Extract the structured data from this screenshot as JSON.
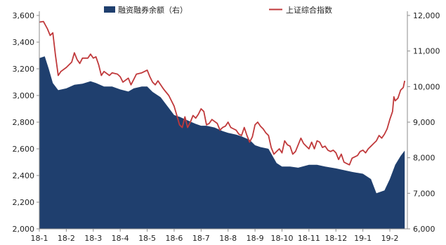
{
  "chart_data": {
    "type": "area+line",
    "title": "",
    "legend_position": "top",
    "grid": false,
    "x_ticks": [
      "18-1",
      "18-2",
      "18-3",
      "18-4",
      "18-5",
      "18-6",
      "18-7",
      "18-8",
      "18-9",
      "18-10",
      "18-11",
      "18-12",
      "19-1",
      "19-2"
    ],
    "x_range": [
      0,
      13.65
    ],
    "left_axis": {
      "min": 2000,
      "max": 3600,
      "step": 200,
      "ticks": [
        "2,000",
        "2,200",
        "2,400",
        "2,600",
        "2,800",
        "3,000",
        "3,200",
        "3,400",
        "3,600"
      ]
    },
    "right_axis": {
      "min": 6000,
      "max": 12000,
      "step": 1000,
      "ticks": [
        "6,000",
        "7,000",
        "8,000",
        "9,000",
        "10,000",
        "11,000",
        "12,000"
      ]
    },
    "series": [
      {
        "name": "融资融券余额（右）",
        "type": "area",
        "axis": "right",
        "color": "#1f3f6e",
        "points": [
          [
            0.0,
            10800
          ],
          [
            0.2,
            10850
          ],
          [
            0.35,
            10500
          ],
          [
            0.5,
            10100
          ],
          [
            0.7,
            9900
          ],
          [
            1.0,
            9950
          ],
          [
            1.3,
            10050
          ],
          [
            1.6,
            10080
          ],
          [
            1.9,
            10150
          ],
          [
            2.1,
            10100
          ],
          [
            2.4,
            10000
          ],
          [
            2.7,
            10000
          ],
          [
            3.0,
            9920
          ],
          [
            3.3,
            9860
          ],
          [
            3.5,
            9950
          ],
          [
            3.8,
            10000
          ],
          [
            4.0,
            10000
          ],
          [
            4.2,
            9850
          ],
          [
            4.5,
            9700
          ],
          [
            4.8,
            9400
          ],
          [
            5.0,
            9200
          ],
          [
            5.2,
            9150
          ],
          [
            5.5,
            9050
          ],
          [
            5.8,
            8950
          ],
          [
            6.0,
            8900
          ],
          [
            6.2,
            8900
          ],
          [
            6.5,
            8850
          ],
          [
            6.8,
            8750
          ],
          [
            7.0,
            8700
          ],
          [
            7.3,
            8650
          ],
          [
            7.5,
            8600
          ],
          [
            7.8,
            8500
          ],
          [
            8.0,
            8350
          ],
          [
            8.2,
            8300
          ],
          [
            8.5,
            8250
          ],
          [
            8.8,
            7850
          ],
          [
            9.0,
            7750
          ],
          [
            9.3,
            7750
          ],
          [
            9.6,
            7720
          ],
          [
            10.0,
            7800
          ],
          [
            10.3,
            7800
          ],
          [
            10.6,
            7750
          ],
          [
            11.0,
            7700
          ],
          [
            11.3,
            7650
          ],
          [
            11.6,
            7600
          ],
          [
            12.0,
            7550
          ],
          [
            12.3,
            7400
          ],
          [
            12.5,
            7000
          ],
          [
            12.8,
            7080
          ],
          [
            13.0,
            7400
          ],
          [
            13.2,
            7800
          ],
          [
            13.4,
            8050
          ],
          [
            13.55,
            8200
          ]
        ]
      },
      {
        "name": "上证综合指数",
        "type": "line",
        "axis": "left",
        "color": "#c0393b",
        "points": [
          [
            0.0,
            3550
          ],
          [
            0.15,
            3555
          ],
          [
            0.3,
            3500
          ],
          [
            0.4,
            3450
          ],
          [
            0.5,
            3470
          ],
          [
            0.6,
            3300
          ],
          [
            0.7,
            3150
          ],
          [
            0.8,
            3180
          ],
          [
            1.0,
            3210
          ],
          [
            1.2,
            3250
          ],
          [
            1.3,
            3320
          ],
          [
            1.4,
            3270
          ],
          [
            1.5,
            3240
          ],
          [
            1.6,
            3280
          ],
          [
            1.8,
            3280
          ],
          [
            1.9,
            3310
          ],
          [
            2.0,
            3280
          ],
          [
            2.1,
            3290
          ],
          [
            2.2,
            3230
          ],
          [
            2.3,
            3150
          ],
          [
            2.4,
            3180
          ],
          [
            2.6,
            3150
          ],
          [
            2.7,
            3170
          ],
          [
            2.9,
            3160
          ],
          [
            3.0,
            3140
          ],
          [
            3.1,
            3100
          ],
          [
            3.3,
            3130
          ],
          [
            3.4,
            3080
          ],
          [
            3.5,
            3120
          ],
          [
            3.6,
            3160
          ],
          [
            3.8,
            3170
          ],
          [
            4.0,
            3190
          ],
          [
            4.1,
            3140
          ],
          [
            4.2,
            3100
          ],
          [
            4.3,
            3080
          ],
          [
            4.4,
            3110
          ],
          [
            4.5,
            3080
          ],
          [
            4.6,
            3050
          ],
          [
            4.8,
            3000
          ],
          [
            5.0,
            2920
          ],
          [
            5.1,
            2850
          ],
          [
            5.2,
            2780
          ],
          [
            5.3,
            2760
          ],
          [
            5.4,
            2840
          ],
          [
            5.5,
            2760
          ],
          [
            5.6,
            2800
          ],
          [
            5.7,
            2850
          ],
          [
            5.8,
            2830
          ],
          [
            5.9,
            2860
          ],
          [
            6.0,
            2900
          ],
          [
            6.1,
            2880
          ],
          [
            6.2,
            2780
          ],
          [
            6.3,
            2790
          ],
          [
            6.4,
            2820
          ],
          [
            6.6,
            2790
          ],
          [
            6.7,
            2740
          ],
          [
            6.8,
            2760
          ],
          [
            6.9,
            2770
          ],
          [
            7.0,
            2800
          ],
          [
            7.1,
            2760
          ],
          [
            7.2,
            2750
          ],
          [
            7.3,
            2740
          ],
          [
            7.4,
            2710
          ],
          [
            7.5,
            2700
          ],
          [
            7.6,
            2760
          ],
          [
            7.7,
            2700
          ],
          [
            7.8,
            2650
          ],
          [
            7.9,
            2690
          ],
          [
            8.0,
            2780
          ],
          [
            8.1,
            2800
          ],
          [
            8.2,
            2770
          ],
          [
            8.3,
            2750
          ],
          [
            8.4,
            2720
          ],
          [
            8.5,
            2700
          ],
          [
            8.6,
            2610
          ],
          [
            8.7,
            2560
          ],
          [
            8.8,
            2580
          ],
          [
            8.9,
            2600
          ],
          [
            9.0,
            2570
          ],
          [
            9.1,
            2660
          ],
          [
            9.2,
            2630
          ],
          [
            9.3,
            2620
          ],
          [
            9.4,
            2560
          ],
          [
            9.5,
            2580
          ],
          [
            9.7,
            2680
          ],
          [
            9.8,
            2640
          ],
          [
            9.9,
            2620
          ],
          [
            10.0,
            2600
          ],
          [
            10.1,
            2650
          ],
          [
            10.2,
            2600
          ],
          [
            10.3,
            2660
          ],
          [
            10.4,
            2650
          ],
          [
            10.5,
            2610
          ],
          [
            10.6,
            2620
          ],
          [
            10.7,
            2590
          ],
          [
            10.8,
            2580
          ],
          [
            10.9,
            2590
          ],
          [
            11.0,
            2570
          ],
          [
            11.1,
            2520
          ],
          [
            11.2,
            2560
          ],
          [
            11.3,
            2500
          ],
          [
            11.4,
            2490
          ],
          [
            11.5,
            2480
          ],
          [
            11.6,
            2530
          ],
          [
            11.7,
            2540
          ],
          [
            11.8,
            2550
          ],
          [
            11.9,
            2580
          ],
          [
            12.0,
            2590
          ],
          [
            12.1,
            2570
          ],
          [
            12.2,
            2600
          ],
          [
            12.3,
            2620
          ],
          [
            12.4,
            2640
          ],
          [
            12.5,
            2660
          ],
          [
            12.6,
            2700
          ],
          [
            12.7,
            2680
          ],
          [
            12.8,
            2710
          ],
          [
            12.9,
            2750
          ],
          [
            13.0,
            2820
          ],
          [
            13.1,
            2880
          ],
          [
            13.15,
            2990
          ],
          [
            13.2,
            2960
          ],
          [
            13.3,
            2980
          ],
          [
            13.4,
            3040
          ],
          [
            13.5,
            3060
          ],
          [
            13.55,
            3110
          ]
        ]
      }
    ]
  }
}
